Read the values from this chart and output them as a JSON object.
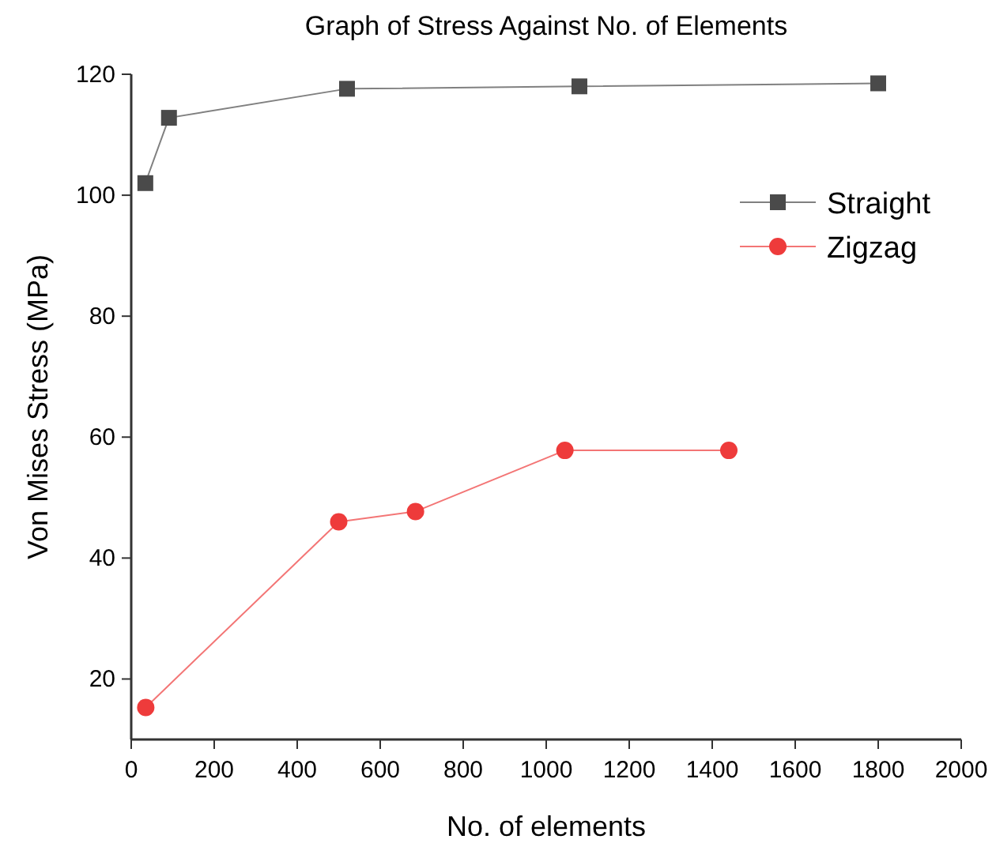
{
  "chart_data": {
    "type": "line",
    "title": "Graph of Stress Against No. of Elements",
    "xlabel": "No. of elements",
    "ylabel": "Von Mises Stress (MPa)",
    "xlim": [
      0,
      2000
    ],
    "xticks": [
      0,
      200,
      400,
      600,
      800,
      1000,
      1200,
      1400,
      1600,
      1800,
      2000
    ],
    "ylim": [
      10,
      120
    ],
    "yticks": [
      20,
      40,
      60,
      80,
      100,
      120
    ],
    "legend": "top right",
    "grid": false,
    "series": [
      {
        "name": "Straight",
        "color": "#4a4a4a",
        "marker": "square",
        "x": [
          34,
          91,
          520,
          1080,
          1800
        ],
        "values": [
          102,
          112.8,
          117.6,
          118,
          118.5
        ]
      },
      {
        "name": "Zigzag",
        "color": "#ee3b3b",
        "marker": "circle",
        "x": [
          35,
          500,
          685,
          1045,
          1440
        ],
        "values": [
          15.3,
          46,
          47.7,
          57.8,
          57.8
        ]
      }
    ]
  }
}
